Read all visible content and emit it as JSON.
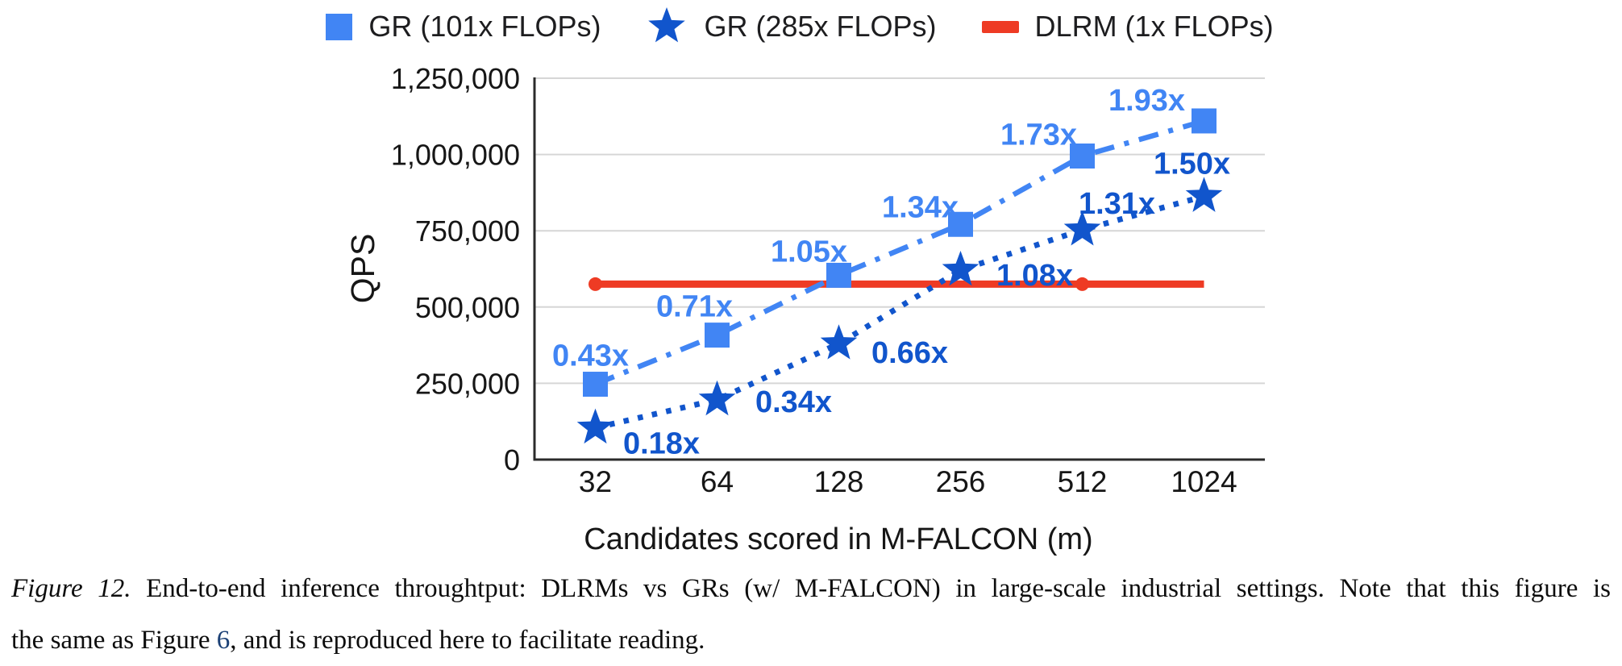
{
  "chart_data": {
    "type": "line",
    "title": "",
    "xlabel": "Candidates scored in M-FALCON (m)",
    "ylabel": "QPS",
    "x_categories": [
      "32",
      "64",
      "128",
      "256",
      "512",
      "1024"
    ],
    "ylim": [
      0,
      1250000
    ],
    "y_ticks": [
      0,
      250000,
      500000,
      750000,
      1000000,
      1250000
    ],
    "y_tick_labels": [
      "0",
      "250,000",
      "500,000",
      "750,000",
      "1,000,000",
      "1,250,000"
    ],
    "grid": "horizontal",
    "legend_position": "top-center",
    "baseline_series": "DLRM (1x FLOPs)",
    "baseline_qps": 575000,
    "colors": {
      "grid": "#d6d6d6",
      "axis": "#2b2b2b",
      "tick_text": "#161616"
    },
    "series": [
      {
        "name": "GR (101x FLOPs)",
        "color": "#4185f4",
        "marker": "square",
        "line_style": "dash-dot",
        "values": [
          247000,
          408000,
          604000,
          771000,
          995000,
          1110000
        ],
        "speedup_labels": [
          "0.43x",
          "0.71x",
          "1.05x",
          "1.34x",
          "1.73x",
          "1.93x"
        ],
        "label_offsets": [
          [
            -6,
            -36
          ],
          [
            -28,
            -36
          ],
          [
            -37,
            -30
          ],
          [
            -50,
            -22
          ],
          [
            -54,
            -27
          ],
          [
            -71,
            -26
          ]
        ]
      },
      {
        "name": "GR (285x FLOPs)",
        "color": "#1155cc",
        "marker": "star",
        "line_style": "dotted",
        "values": [
          104000,
          196000,
          380000,
          621000,
          753000,
          863000
        ],
        "speedup_labels": [
          "0.18x",
          "0.34x",
          "0.66x",
          "1.08x",
          "1.31x",
          "1.50x"
        ],
        "label_offsets": [
          [
            82,
            19
          ],
          [
            95,
            2
          ],
          [
            88,
            11
          ],
          [
            92,
            6
          ],
          [
            43,
            -33
          ],
          [
            -15,
            -41
          ]
        ]
      },
      {
        "name": "DLRM (1x FLOPs)",
        "color": "#ee3b24",
        "marker": "circle",
        "marker_indices": [
          0,
          4
        ],
        "line_style": "solid",
        "values": [
          575000,
          575000,
          575000,
          575000,
          575000,
          575000
        ],
        "speedup_labels": [],
        "label_offsets": []
      }
    ]
  },
  "caption": {
    "figure_label": "Figure 12.",
    "line1_rest": "End-to-end inference throughtput: DLRMs vs GRs (w/ M-FALCON) in large-scale industrial settings. Note that this figure is",
    "line2_before_link": "the same as Figure",
    "link_text": "6",
    "line2_after_link": ", and is reproduced here to facilitate reading.",
    "link_color": "#1c4176"
  }
}
